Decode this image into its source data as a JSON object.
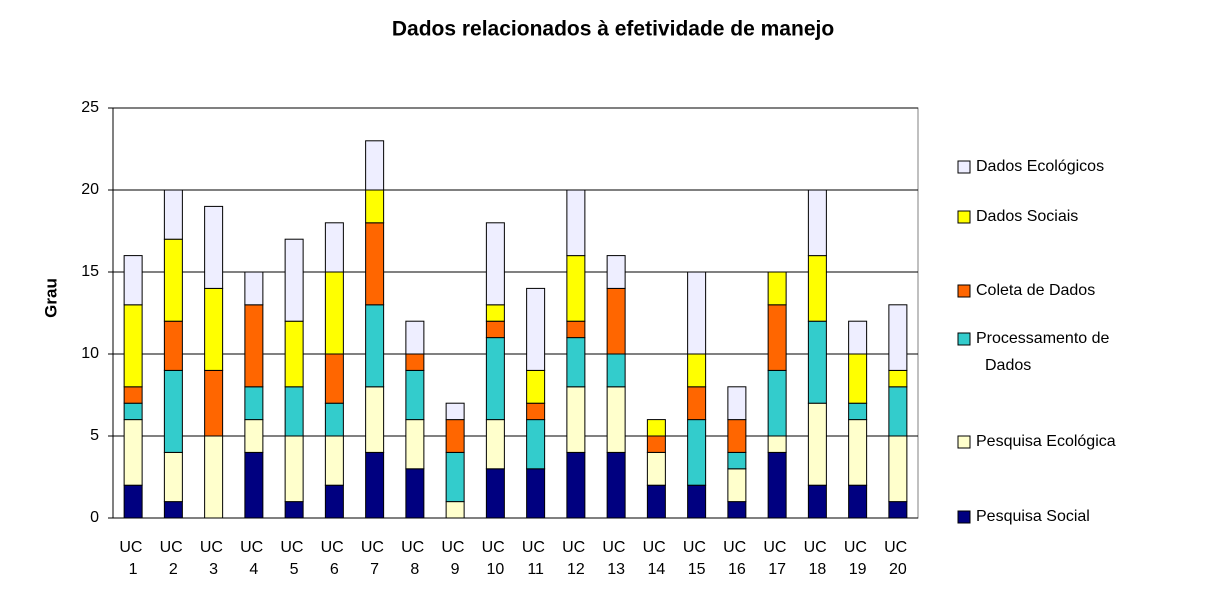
{
  "chart_data": {
    "type": "stacked_bar",
    "title": "Dados relacionados à efetividade de manejo",
    "y_label": "Grau",
    "categories": [
      "UC 1",
      "UC 2",
      "UC 3",
      "UC 4",
      "UC 5",
      "UC 6",
      "UC 7",
      "UC 8",
      "UC 9",
      "UC 10",
      "UC 11",
      "UC 12",
      "UC 13",
      "UC 14",
      "UC 15",
      "UC 16",
      "UC 17",
      "UC 18",
      "UC 19",
      "UC 20"
    ],
    "series": [
      {
        "name": "Pesquisa Social",
        "color": "#000080",
        "values": [
          2,
          1,
          0,
          4,
          1,
          2,
          4,
          3,
          0,
          3,
          3,
          4,
          4,
          2,
          2,
          1,
          4,
          2,
          2,
          1
        ]
      },
      {
        "name": "Pesquisa Ecológica",
        "color": "#ffffcc",
        "values": [
          4,
          3,
          5,
          2,
          4,
          3,
          4,
          3,
          1,
          3,
          0,
          4,
          4,
          2,
          0,
          2,
          1,
          5,
          4,
          4
        ]
      },
      {
        "name": "Processamento de Dados",
        "color": "#33cccc",
        "values": [
          1,
          5,
          0,
          2,
          3,
          2,
          5,
          3,
          3,
          5,
          3,
          3,
          2,
          0,
          4,
          1,
          4,
          5,
          1,
          3
        ]
      },
      {
        "name": "Coleta de Dados",
        "color": "#ff6600",
        "values": [
          1,
          3,
          4,
          5,
          0,
          3,
          5,
          1,
          2,
          1,
          1,
          1,
          4,
          1,
          2,
          2,
          4,
          0,
          0,
          0
        ]
      },
      {
        "name": "Dados Sociais",
        "color": "#ffff00",
        "values": [
          5,
          5,
          5,
          0,
          4,
          5,
          2,
          0,
          0,
          1,
          2,
          4,
          0,
          1,
          2,
          0,
          2,
          4,
          3,
          1
        ]
      },
      {
        "name": "Dados Ecológicos",
        "color": "#eeeeff",
        "values": [
          3,
          3,
          5,
          2,
          5,
          3,
          3,
          2,
          1,
          5,
          5,
          4,
          2,
          0,
          5,
          2,
          0,
          4,
          2,
          4
        ]
      }
    ],
    "ylim": [
      0,
      25
    ],
    "yticks": [
      0,
      5,
      10,
      15,
      20,
      25
    ],
    "grid": true,
    "legend": "right"
  }
}
